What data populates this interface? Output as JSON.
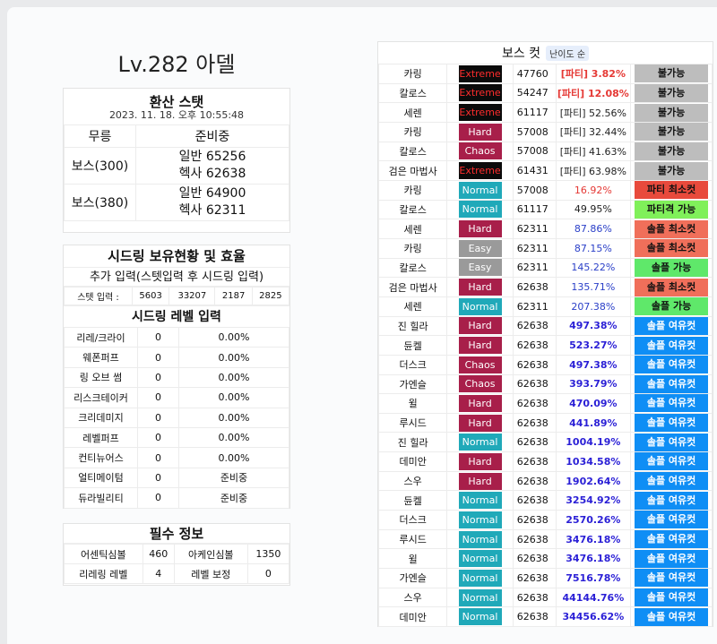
{
  "character": {
    "title": "Lv.282 아델"
  },
  "converted": {
    "heading": "환산 스탯",
    "date": "2023. 11. 18. 오후 10:55:48",
    "col1": "무릉",
    "col2": "준비중",
    "rows": [
      {
        "label": "보스(300)",
        "line1": "일반 65256",
        "line2": "헥사 62638"
      },
      {
        "label": "보스(380)",
        "line1": "일반 64900",
        "line2": "헥사 62311"
      }
    ]
  },
  "seeding": {
    "heading": "시드링 보유현황 및 효율",
    "sub": "추가 입력(스텟입력 후 시드링 입력)",
    "stat_label": "스텟 입력 :",
    "stat_values": [
      "5603",
      "33207",
      "2187",
      "2825"
    ],
    "level_heading": "시드링 레벨 입력",
    "rings": [
      {
        "name": "리레/크라이",
        "level": "0",
        "value": "0.00%"
      },
      {
        "name": "웨폰퍼프",
        "level": "0",
        "value": "0.00%"
      },
      {
        "name": "링 오브 썸",
        "level": "0",
        "value": "0.00%"
      },
      {
        "name": "리스크테이커",
        "level": "0",
        "value": "0.00%"
      },
      {
        "name": "크리데미지",
        "level": "0",
        "value": "0.00%"
      },
      {
        "name": "레벨퍼프",
        "level": "0",
        "value": "0.00%"
      },
      {
        "name": "컨티뉴어스",
        "level": "0",
        "value": "0.00%"
      },
      {
        "name": "얼티메이텀",
        "level": "0",
        "value": "준비중"
      },
      {
        "name": "듀라빌리티",
        "level": "0",
        "value": "준비중"
      }
    ]
  },
  "required": {
    "heading": "필수 정보",
    "rows": [
      {
        "k1": "어센틱심볼",
        "v1": "460",
        "k2": "아케인심볼",
        "v2": "1350"
      },
      {
        "k1": "리레링 레벨",
        "v1": "4",
        "k2": "레벨 보정",
        "v2": "0"
      }
    ]
  },
  "boss_cut": {
    "title": "보스 컷",
    "sort_label": "난이도 순",
    "colors": {
      "Extreme": "#0b0b0b",
      "Hard": "#a81f4a",
      "Chaos": "#a81f4a",
      "Normal": "#20a9b9",
      "Easy": "#9a9a9a",
      "불가능": "#bdbdbd",
      "파티 최소컷": "#e84a3c",
      "파티격 가능": "#80f05a",
      "솔플 최소컷": "#f06f5a",
      "솔플 가능": "#5fe86a",
      "솔플 여유컷": "#0f8ef5"
    },
    "rows": [
      {
        "boss": "카링",
        "diff": "Extreme",
        "req": "47760",
        "eff": "[파티] 3.82%",
        "status": "불가능"
      },
      {
        "boss": "칼로스",
        "diff": "Extreme",
        "req": "54247",
        "eff": "[파티] 12.08%",
        "status": "불가능"
      },
      {
        "boss": "세렌",
        "diff": "Extreme",
        "req": "61117",
        "eff": "[파티] 52.56%",
        "status": "불가능"
      },
      {
        "boss": "카링",
        "diff": "Hard",
        "req": "57008",
        "eff": "[파티] 32.44%",
        "status": "불가능"
      },
      {
        "boss": "칼로스",
        "diff": "Chaos",
        "req": "57008",
        "eff": "[파티] 41.63%",
        "status": "불가능"
      },
      {
        "boss": "검은 마법사",
        "diff": "Extreme",
        "req": "61431",
        "eff": "[파티] 63.98%",
        "status": "불가능"
      },
      {
        "boss": "카링",
        "diff": "Normal",
        "req": "57008",
        "eff": "16.92%",
        "status": "파티 최소컷"
      },
      {
        "boss": "칼로스",
        "diff": "Normal",
        "req": "61117",
        "eff": "49.95%",
        "status": "파티격 가능"
      },
      {
        "boss": "세렌",
        "diff": "Hard",
        "req": "62311",
        "eff": "87.86%",
        "status": "솔플 최소컷"
      },
      {
        "boss": "카링",
        "diff": "Easy",
        "req": "62311",
        "eff": "87.15%",
        "status": "솔플 최소컷"
      },
      {
        "boss": "칼로스",
        "diff": "Easy",
        "req": "62311",
        "eff": "145.22%",
        "status": "솔플 가능"
      },
      {
        "boss": "검은 마법사",
        "diff": "Hard",
        "req": "62638",
        "eff": "135.71%",
        "status": "솔플 최소컷"
      },
      {
        "boss": "세렌",
        "diff": "Normal",
        "req": "62311",
        "eff": "207.38%",
        "status": "솔플 가능"
      },
      {
        "boss": "진 힐라",
        "diff": "Hard",
        "req": "62638",
        "eff": "497.38%",
        "status": "솔플 여유컷"
      },
      {
        "boss": "듄켈",
        "diff": "Hard",
        "req": "62638",
        "eff": "523.27%",
        "status": "솔플 여유컷"
      },
      {
        "boss": "더스크",
        "diff": "Chaos",
        "req": "62638",
        "eff": "497.38%",
        "status": "솔플 여유컷"
      },
      {
        "boss": "가엔슬",
        "diff": "Chaos",
        "req": "62638",
        "eff": "393.79%",
        "status": "솔플 여유컷"
      },
      {
        "boss": "윌",
        "diff": "Hard",
        "req": "62638",
        "eff": "470.09%",
        "status": "솔플 여유컷"
      },
      {
        "boss": "루시드",
        "diff": "Hard",
        "req": "62638",
        "eff": "441.89%",
        "status": "솔플 여유컷"
      },
      {
        "boss": "진 힐라",
        "diff": "Normal",
        "req": "62638",
        "eff": "1004.19%",
        "status": "솔플 여유컷"
      },
      {
        "boss": "데미안",
        "diff": "Hard",
        "req": "62638",
        "eff": "1034.58%",
        "status": "솔플 여유컷"
      },
      {
        "boss": "스우",
        "diff": "Hard",
        "req": "62638",
        "eff": "1902.64%",
        "status": "솔플 여유컷"
      },
      {
        "boss": "듄켈",
        "diff": "Normal",
        "req": "62638",
        "eff": "3254.92%",
        "status": "솔플 여유컷"
      },
      {
        "boss": "더스크",
        "diff": "Normal",
        "req": "62638",
        "eff": "2570.26%",
        "status": "솔플 여유컷"
      },
      {
        "boss": "루시드",
        "diff": "Normal",
        "req": "62638",
        "eff": "3476.18%",
        "status": "솔플 여유컷"
      },
      {
        "boss": "윌",
        "diff": "Normal",
        "req": "62638",
        "eff": "3476.18%",
        "status": "솔플 여유컷"
      },
      {
        "boss": "가엔슬",
        "diff": "Normal",
        "req": "62638",
        "eff": "7516.78%",
        "status": "솔플 여유컷"
      },
      {
        "boss": "스우",
        "diff": "Normal",
        "req": "62638",
        "eff": "44144.76%",
        "status": "솔플 여유컷"
      },
      {
        "boss": "데미안",
        "diff": "Normal",
        "req": "62638",
        "eff": "34456.62%",
        "status": "솔플 여유컷"
      }
    ]
  }
}
